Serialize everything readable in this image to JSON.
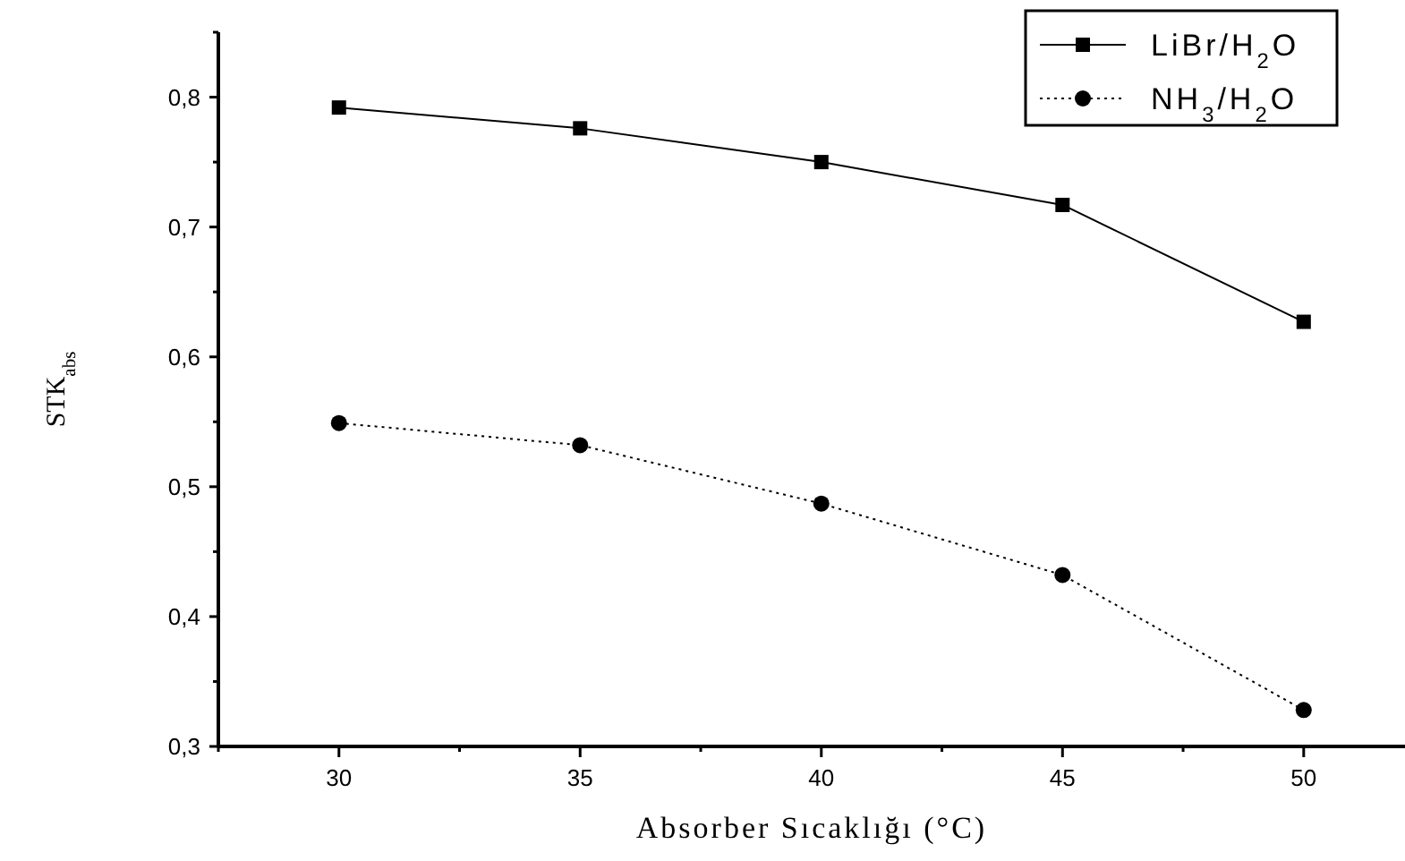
{
  "chart_data": {
    "type": "line",
    "xlabel": "Absorber Sıcaklığı (°C)",
    "ylabel": "STK$_{abs}$",
    "x": [
      30,
      35,
      40,
      45,
      50
    ],
    "series": [
      {
        "name": "LiBr/H$_{2}$O",
        "color": "#000000",
        "marker": "square",
        "line_style": "solid",
        "values": [
          0.792,
          0.776,
          0.75,
          0.717,
          0.627
        ]
      },
      {
        "name": "NH$_{3}$/H$_{2}$O",
        "color": "#000000",
        "marker": "circle",
        "line_style": "dotted",
        "values": [
          0.549,
          0.532,
          0.487,
          0.432,
          0.328
        ]
      }
    ],
    "xlim": [
      27.5,
      52.1
    ],
    "xticks": [
      {
        "value": 27.5,
        "label": null
      },
      30,
      {
        "value": 32.5,
        "label": null
      },
      35,
      {
        "value": 37.5,
        "label": null
      },
      40,
      {
        "value": 42.5,
        "label": null
      },
      45,
      {
        "value": 47.5,
        "label": null
      },
      50
    ],
    "ylim": [
      0.3,
      0.85
    ],
    "yticks": [
      {
        "value": 0.3,
        "label": "0,3"
      },
      {
        "value": 0.35,
        "label": null
      },
      {
        "value": 0.4,
        "label": "0,4"
      },
      {
        "value": 0.45,
        "label": null
      },
      {
        "value": 0.5,
        "label": "0,5"
      },
      {
        "value": 0.55,
        "label": null
      },
      {
        "value": 0.6,
        "label": "0,6"
      },
      {
        "value": 0.65,
        "label": null
      },
      {
        "value": 0.7,
        "label": "0,7"
      },
      {
        "value": 0.75,
        "label": null
      },
      {
        "value": 0.8,
        "label": "0,8"
      },
      {
        "value": 0.85,
        "label": null
      }
    ],
    "grid": false,
    "legend": "top right"
  }
}
